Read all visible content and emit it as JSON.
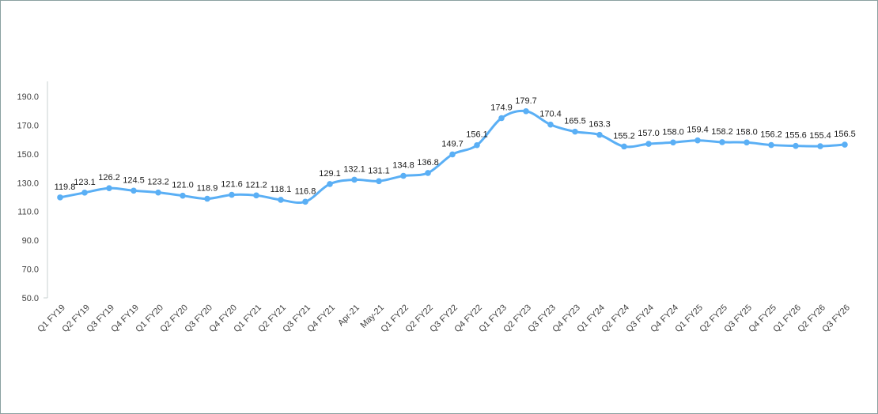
{
  "chart_data": {
    "type": "line",
    "title": "",
    "xlabel": "",
    "ylabel": "",
    "ylim": [
      50,
      190
    ],
    "yticks": [
      "50.0",
      "70.0",
      "90.0",
      "110.0",
      "130.0",
      "150.0",
      "170.0",
      "190.0"
    ],
    "grid": false,
    "legend": "none",
    "smooth": true,
    "color": "#5aaff5",
    "categories": [
      "Q1 FY19",
      "Q2 FY19",
      "Q3 FY19",
      "Q4 FY19",
      "Q1 FY20",
      "Q2 FY20",
      "Q3 FY20",
      "Q4 FY20",
      "Q1 FY21",
      "Q2 FY21",
      "Q3 FY21",
      "Q4 FY21",
      "Apr-21",
      "May-21",
      "Q1 FY22",
      "Q2 FY22",
      "Q3 FY22",
      "Q4 FY22",
      "Q1 FY23",
      "Q2 FY23",
      "Q3 FY23",
      "Q4 FY23",
      "Q1 FY24",
      "Q2 FY24",
      "Q3 FY24",
      "Q4 FY24",
      "Q1 FY25",
      "Q2 FY25",
      "Q3 FY25",
      "Q4 FY25",
      "Q1 FY26",
      "Q2 FY26",
      "Q3 FY26"
    ],
    "values": [
      119.8,
      123.1,
      126.2,
      124.5,
      123.2,
      121.0,
      118.9,
      121.6,
      121.2,
      118.1,
      116.8,
      129.1,
      132.1,
      131.1,
      134.8,
      136.8,
      149.7,
      156.1,
      174.9,
      179.7,
      170.4,
      165.5,
      163.3,
      155.2,
      157.0,
      158.0,
      159.4,
      158.2,
      158.0,
      156.2,
      155.6,
      155.4,
      156.5
    ],
    "data_labels": [
      "119.8",
      "123.1",
      "126.2",
      "124.5",
      "123.2",
      "121.0",
      "118.9",
      "121.6",
      "121.2",
      "118.1",
      "116.8",
      "129.1",
      "132.1",
      "131.1",
      "134.8",
      "136.8",
      "149.7",
      "156.1",
      "174.9",
      "179.7",
      "170.4",
      "165.5",
      "163.3",
      "155.2",
      "157.0",
      "158.0",
      "159.4",
      "158.2",
      "158.0",
      "156.2",
      "155.6",
      "155.4",
      "156.5"
    ]
  }
}
